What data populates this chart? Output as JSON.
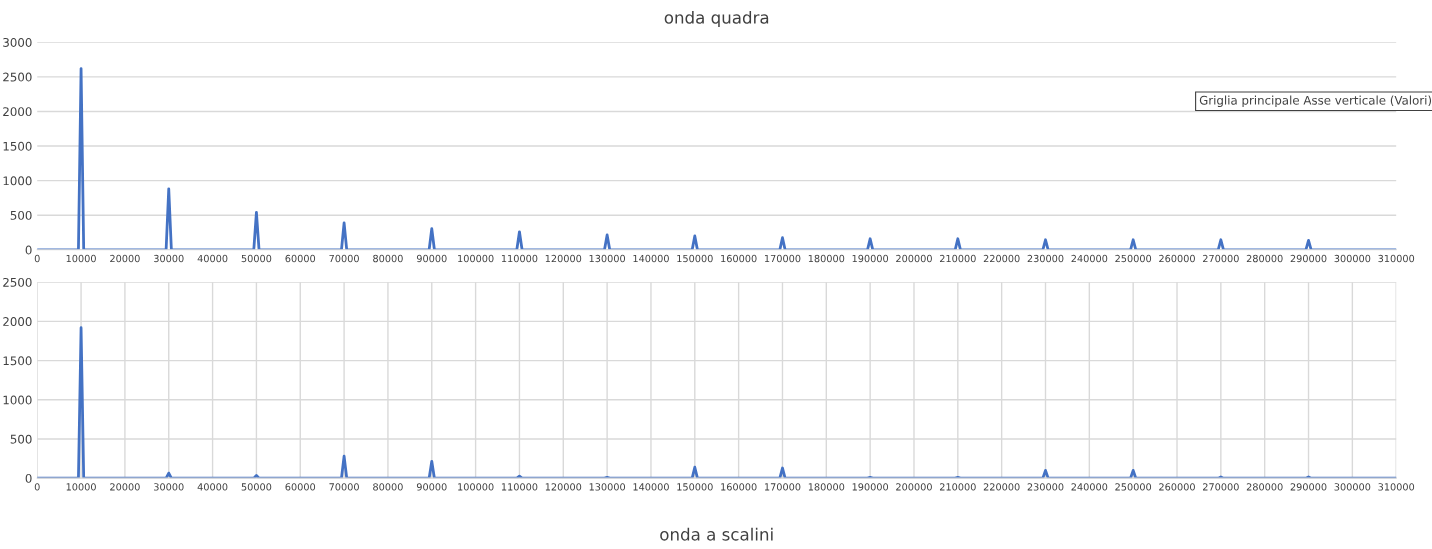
{
  "chart_data": [
    {
      "type": "line",
      "title": "onda quadra",
      "grid": "y",
      "xlim": [
        0,
        310000
      ],
      "ylim": [
        0,
        3000
      ],
      "yticks": [
        0,
        500,
        1000,
        1500,
        2000,
        2500,
        3000
      ],
      "xticks": [
        0,
        10000,
        20000,
        30000,
        40000,
        50000,
        60000,
        70000,
        80000,
        90000,
        100000,
        110000,
        120000,
        130000,
        140000,
        150000,
        160000,
        170000,
        180000,
        190000,
        200000,
        210000,
        220000,
        230000,
        240000,
        250000,
        260000,
        270000,
        280000,
        290000,
        300000,
        310000
      ],
      "annotations": [
        "Griglia principale Asse verticale (Valori)"
      ],
      "series": [
        {
          "color": "#4472c4",
          "x": [
            0,
            9400,
            10000,
            10600,
            29400,
            30000,
            30600,
            49400,
            50000,
            50600,
            69400,
            70000,
            70600,
            89400,
            90000,
            90600,
            109400,
            110000,
            110600,
            129400,
            130000,
            130600,
            149400,
            150000,
            150600,
            169400,
            170000,
            170600,
            189400,
            190000,
            190600,
            209400,
            210000,
            210600,
            229400,
            230000,
            230600,
            249400,
            250000,
            250600,
            269400,
            270000,
            270600,
            289400,
            290000,
            290600,
            310000
          ],
          "values": [
            0,
            0,
            2620,
            0,
            0,
            880,
            0,
            0,
            540,
            0,
            0,
            390,
            0,
            0,
            305,
            0,
            0,
            260,
            0,
            0,
            215,
            0,
            0,
            200,
            0,
            0,
            175,
            0,
            0,
            160,
            0,
            0,
            160,
            0,
            0,
            145,
            0,
            0,
            145,
            0,
            0,
            145,
            0,
            0,
            135,
            0,
            0
          ]
        }
      ]
    },
    {
      "type": "line",
      "title": "onda a scalini",
      "grid": true,
      "xlim": [
        0,
        310000
      ],
      "ylim": [
        0,
        2500
      ],
      "yticks": [
        0,
        500,
        1000,
        1500,
        2000,
        2500
      ],
      "xticks": [
        0,
        10000,
        20000,
        30000,
        40000,
        50000,
        60000,
        70000,
        80000,
        90000,
        100000,
        110000,
        120000,
        130000,
        140000,
        150000,
        160000,
        170000,
        180000,
        190000,
        200000,
        210000,
        220000,
        230000,
        240000,
        250000,
        260000,
        270000,
        280000,
        290000,
        300000,
        310000
      ],
      "series": [
        {
          "color": "#4472c4",
          "x": [
            0,
            9400,
            10000,
            10600,
            29400,
            30000,
            30600,
            49400,
            50000,
            50600,
            69400,
            70000,
            70600,
            89400,
            90000,
            90600,
            109400,
            110000,
            110600,
            129400,
            130000,
            130600,
            149400,
            150000,
            150600,
            169400,
            170000,
            170600,
            189400,
            190000,
            190600,
            209400,
            210000,
            210600,
            229400,
            230000,
            230600,
            249400,
            250000,
            250600,
            269400,
            270000,
            270600,
            289400,
            290000,
            290600,
            310000
          ],
          "values": [
            0,
            0,
            1920,
            0,
            0,
            65,
            0,
            0,
            35,
            0,
            0,
            280,
            0,
            0,
            215,
            0,
            0,
            25,
            0,
            0,
            10,
            0,
            0,
            140,
            0,
            0,
            130,
            0,
            0,
            10,
            0,
            0,
            10,
            0,
            0,
            100,
            0,
            0,
            100,
            0,
            0,
            15,
            0,
            0,
            15,
            0,
            0
          ]
        }
      ]
    }
  ]
}
